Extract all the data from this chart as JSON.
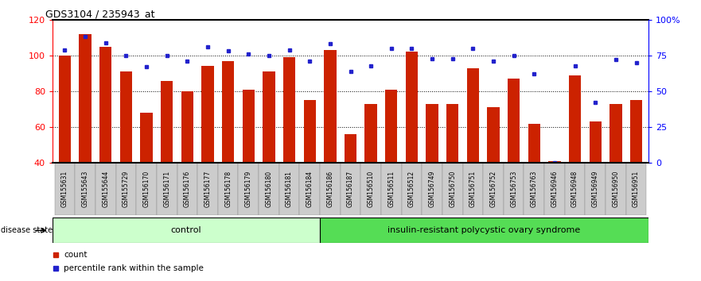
{
  "title": "GDS3104 / 235943_at",
  "samples": [
    "GSM155631",
    "GSM155643",
    "GSM155644",
    "GSM155729",
    "GSM156170",
    "GSM156171",
    "GSM156176",
    "GSM156177",
    "GSM156178",
    "GSM156179",
    "GSM156180",
    "GSM156181",
    "GSM156184",
    "GSM156186",
    "GSM156187",
    "GSM156510",
    "GSM156511",
    "GSM156512",
    "GSM156749",
    "GSM156750",
    "GSM156751",
    "GSM156752",
    "GSM156753",
    "GSM156763",
    "GSM156946",
    "GSM156948",
    "GSM156949",
    "GSM156950",
    "GSM156951"
  ],
  "count_values": [
    100,
    112,
    105,
    91,
    68,
    86,
    80,
    94,
    97,
    81,
    91,
    99,
    75,
    103,
    56,
    73,
    81,
    102,
    73,
    73,
    93,
    71,
    87,
    62,
    41,
    89,
    63,
    73,
    75
  ],
  "percentile_values": [
    79,
    88,
    84,
    75,
    67,
    75,
    71,
    81,
    78,
    76,
    75,
    79,
    71,
    83,
    64,
    68,
    80,
    80,
    73,
    73,
    80,
    71,
    75,
    62,
    0,
    68,
    42,
    72,
    70
  ],
  "control_count": 13,
  "disease_label": "insulin-resistant polycystic ovary syndrome",
  "control_label": "control",
  "disease_state_label": "disease state",
  "ylim_left": [
    40,
    120
  ],
  "yticks_left": [
    40,
    60,
    80,
    100,
    120
  ],
  "yticks_right": [
    0,
    25,
    50,
    75,
    100
  ],
  "ymin": 40,
  "ymax": 120,
  "bar_color": "#cc2200",
  "marker_color": "#2222cc",
  "control_bg": "#ccffcc",
  "disease_bg": "#55dd55",
  "tick_bg": "#cccccc",
  "legend_count_label": "count",
  "legend_percentile_label": "percentile rank within the sample"
}
